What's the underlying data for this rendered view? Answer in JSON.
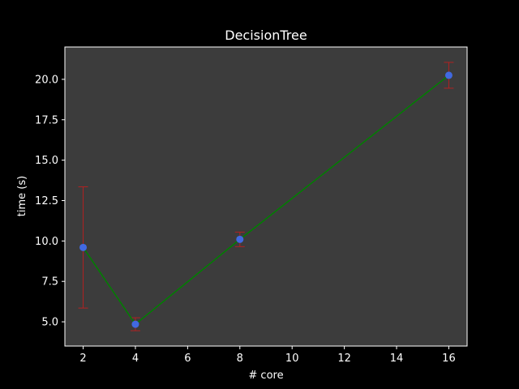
{
  "chart_data": {
    "type": "line",
    "title": "DecisionTree",
    "xlabel": "# core",
    "ylabel": "time (s)",
    "xlim": [
      1.3,
      16.7
    ],
    "ylim": [
      3.5,
      22.0
    ],
    "xticks": [
      2,
      4,
      6,
      8,
      10,
      12,
      14,
      16
    ],
    "xtick_labels": [
      "2",
      "4",
      "6",
      "8",
      "10",
      "12",
      "14",
      "16"
    ],
    "yticks": [
      5.0,
      7.5,
      10.0,
      12.5,
      15.0,
      17.5,
      20.0
    ],
    "ytick_labels": [
      "5.0",
      "7.5",
      "10.0",
      "12.5",
      "15.0",
      "17.5",
      "20.0"
    ],
    "grid": false,
    "series": [
      {
        "x": [
          2,
          4,
          8,
          16
        ],
        "values": [
          9.6,
          4.85,
          10.1,
          20.25
        ],
        "error_low": [
          5.85,
          4.45,
          9.65,
          19.45
        ],
        "error_high": [
          13.35,
          5.25,
          10.55,
          21.05
        ]
      }
    ],
    "colors": {
      "figure_background": "#000000",
      "plot_background": "#3c3c3c",
      "line": "#008000",
      "marker": "#4169e1",
      "errorbar": "#b22222",
      "text": "#ffffff",
      "axes": "#ffffff"
    }
  }
}
